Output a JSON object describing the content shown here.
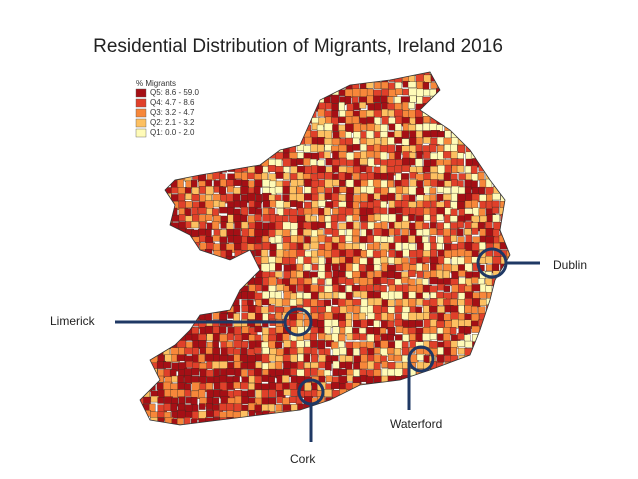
{
  "title": "Residential Distribution of Migrants, Ireland 2016",
  "legend": {
    "title": "% Migrants",
    "items": [
      {
        "label": "Q5: 8.6 - 59.0",
        "color": "#a50f15"
      },
      {
        "label": "Q4: 4.7 - 8.6",
        "color": "#e0402a"
      },
      {
        "label": "Q3: 3.2 - 4.7",
        "color": "#f7873a"
      },
      {
        "label": "Q2: 2.1 - 3.2",
        "color": "#fdc061"
      },
      {
        "label": "Q1: 0.0 - 2.0",
        "color": "#fffbb8"
      }
    ]
  },
  "callouts": [
    {
      "label": "Dublin"
    },
    {
      "label": "Limerick"
    },
    {
      "label": "Waterford"
    },
    {
      "label": "Cork"
    }
  ]
}
